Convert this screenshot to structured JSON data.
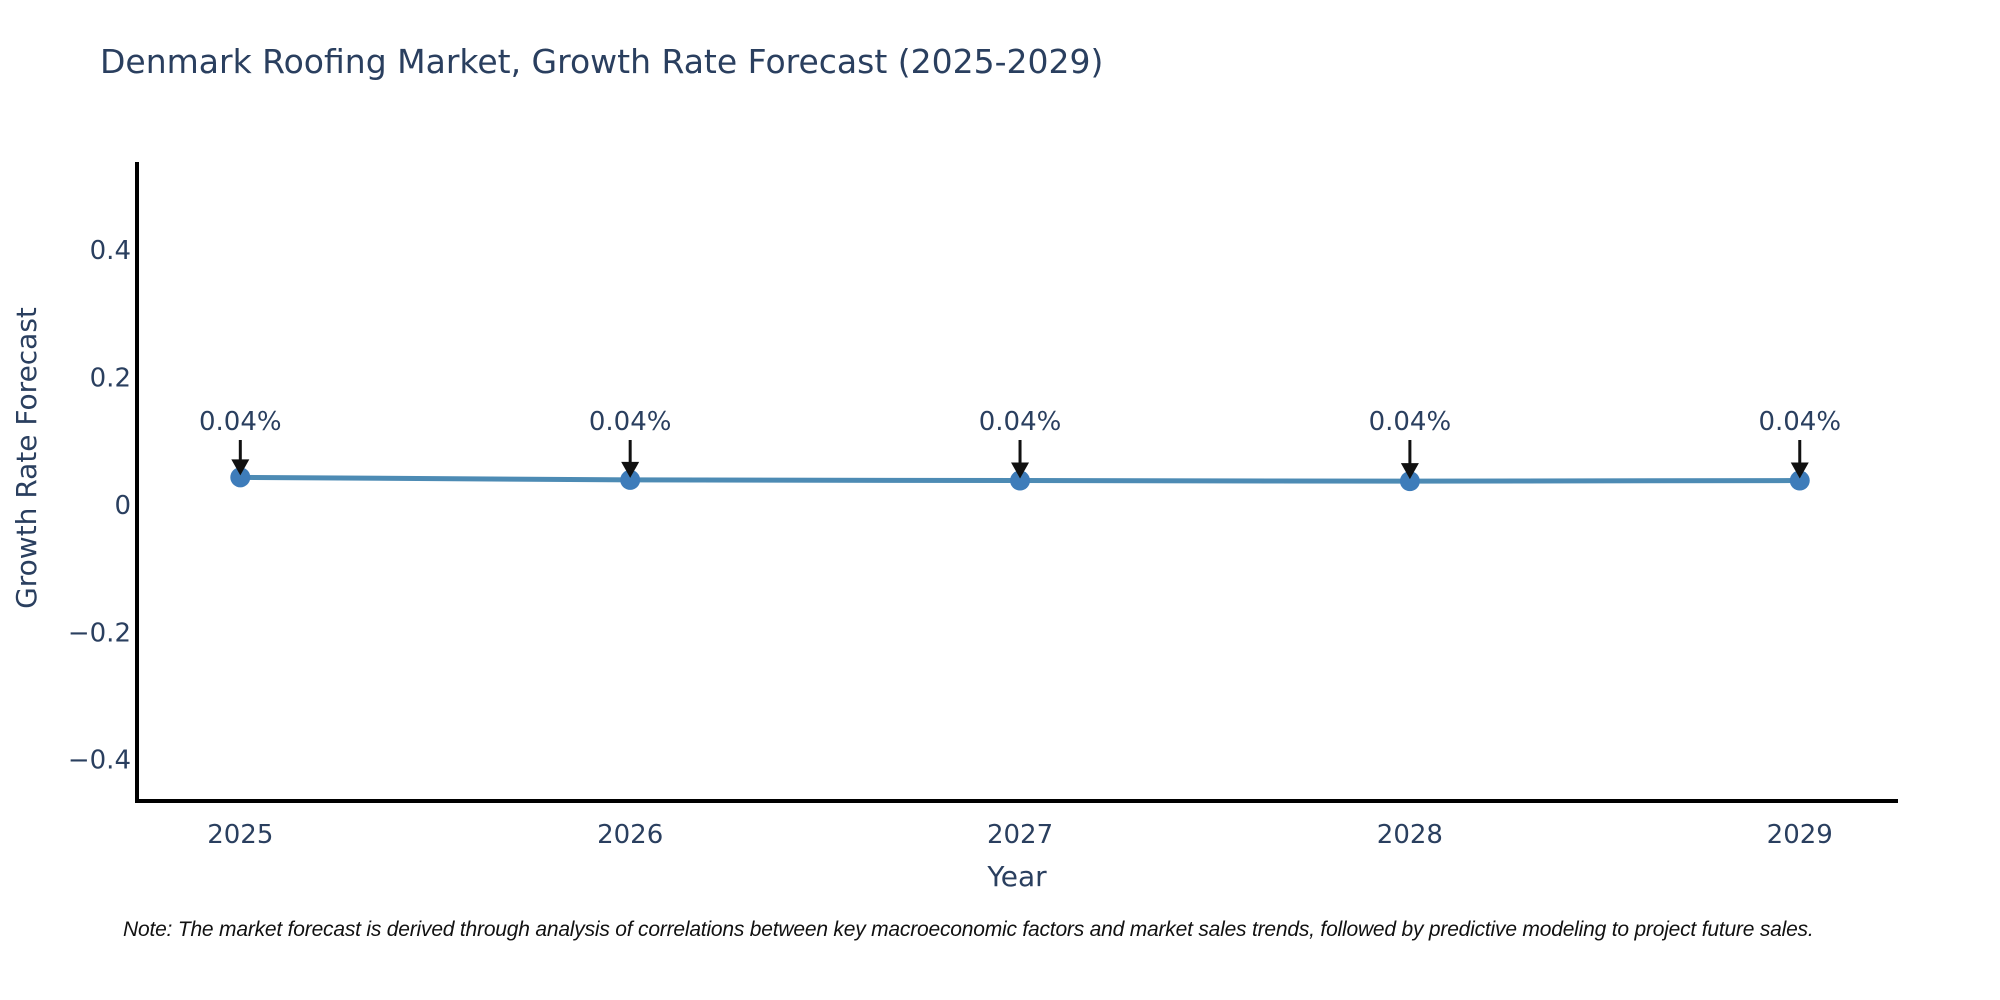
{
  "title": "Denmark Roofing Market, Growth Rate Forecast (2025-2029)",
  "note": {
    "text": "Note: The market forecast is derived through analysis of correlations between key macroeconomic factors and market sales trends, followed by predictive modeling to project future sales."
  },
  "colors": {
    "title_text": "#2a3f5f",
    "axis_text": "#2a3f5f",
    "tick_text": "#2a3f5f",
    "annotation_text": "#2a3f5f",
    "axis_line": "#000000",
    "series_line": "#4d8bb4",
    "marker_fill": "#3e7cba",
    "arrow": "#111111",
    "background": "#ffffff"
  },
  "chart_data": {
    "type": "line",
    "title": "Denmark Roofing Market, Growth Rate Forecast (2025-2029)",
    "xlabel": "Year",
    "ylabel": "Growth Rate Forecast",
    "x": [
      2025,
      2026,
      2027,
      2028,
      2029
    ],
    "x_labels": [
      "2025",
      "2026",
      "2027",
      "2028",
      "2029"
    ],
    "series": [
      {
        "name": "Growth Rate Forecast",
        "values": [
          0.043,
          0.039,
          0.038,
          0.037,
          0.038
        ]
      }
    ],
    "annotations": [
      "0.04%",
      "0.04%",
      "0.04%",
      "0.04%",
      "0.04%"
    ],
    "yticks": [
      {
        "value": -0.4,
        "label": "−0.4"
      },
      {
        "value": -0.2,
        "label": "−0.2"
      },
      {
        "value": 0,
        "label": "0"
      },
      {
        "value": 0.2,
        "label": "0.2"
      },
      {
        "value": 0.4,
        "label": "0.4"
      }
    ],
    "xlim": [
      2024.735,
      2029.252
    ],
    "ylim": [
      -0.465,
      0.538
    ],
    "grid": false,
    "legend": false
  }
}
